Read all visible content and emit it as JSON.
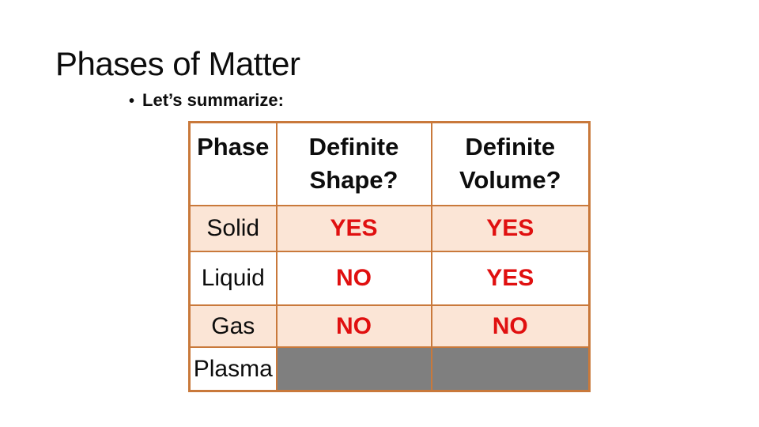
{
  "slide": {
    "title": "Phases of Matter",
    "bullet_marker": "•",
    "bullet_text": "Let’s summarize:"
  },
  "table": {
    "headers": [
      "Phase",
      "Definite Shape?",
      "Definite Volume?"
    ],
    "rows": [
      {
        "phase": "Solid",
        "definite_shape": "YES",
        "definite_volume": "YES"
      },
      {
        "phase": "Liquid",
        "definite_shape": "NO",
        "definite_volume": "YES"
      },
      {
        "phase": "Gas",
        "definite_shape": "NO",
        "definite_volume": "NO"
      },
      {
        "phase": "Plasma",
        "definite_shape": "",
        "definite_volume": ""
      }
    ]
  },
  "colors": {
    "table_border": "#c9793b",
    "row_band_fill": "#fbe5d6",
    "value_text_red": "#e01010",
    "empty_cell_gray": "#7f7f7f",
    "text_black": "#0d0d0d",
    "background": "#ffffff"
  }
}
